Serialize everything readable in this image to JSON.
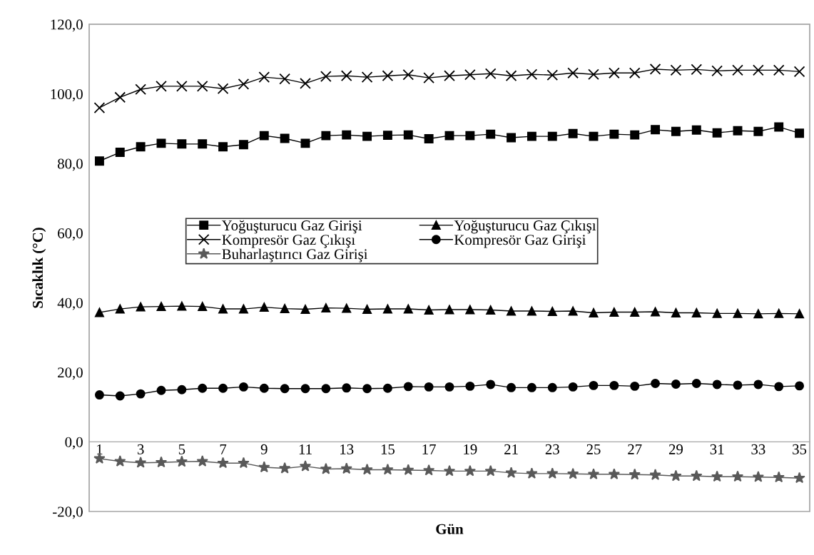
{
  "chart_data": {
    "type": "line",
    "xlabel": "Gün",
    "ylabel": "Sıcaklık (°C)",
    "categories": [
      "1",
      null,
      "3",
      null,
      "5",
      null,
      "7",
      null,
      "9",
      null,
      "11",
      null,
      "13",
      null,
      "15",
      null,
      "17",
      null,
      "19",
      null,
      "21",
      null,
      "23",
      null,
      "25",
      null,
      "27",
      null,
      "29",
      null,
      "31",
      null,
      "33",
      null,
      "35"
    ],
    "ylim": [
      -20,
      120
    ],
    "yticks": [
      {
        "value": -20,
        "label": "-20,0"
      },
      {
        "value": 0,
        "label": "0,0"
      },
      {
        "value": 20,
        "label": "20,0"
      },
      {
        "value": 40,
        "label": "40,0"
      },
      {
        "value": 60,
        "label": "60,0"
      },
      {
        "value": 80,
        "label": "80,0"
      },
      {
        "value": 100,
        "label": "100,0"
      },
      {
        "value": 120,
        "label": "120,0"
      }
    ],
    "grid": false,
    "legend": "center",
    "series": [
      {
        "name": "Yoğuşturucu Gaz Girişi",
        "color": "#000000",
        "marker": "square",
        "values": [
          80.7,
          83.2,
          84.8,
          85.8,
          85.6,
          85.6,
          84.8,
          85.4,
          88.0,
          87.2,
          85.8,
          88.0,
          88.2,
          87.8,
          88.1,
          88.2,
          87.1,
          88.0,
          88.0,
          88.4,
          87.4,
          87.8,
          87.8,
          88.6,
          87.8,
          88.4,
          88.2,
          89.7,
          89.2,
          89.6,
          88.8,
          89.4,
          89.2,
          90.5,
          88.7
        ]
      },
      {
        "name": "Yoğuşturucu Gaz Çıkışı",
        "color": "#000000",
        "marker": "triangle",
        "values": [
          37.2,
          38.2,
          38.8,
          38.9,
          39.0,
          38.9,
          38.2,
          38.2,
          38.7,
          38.3,
          38.1,
          38.5,
          38.4,
          38.1,
          38.2,
          38.2,
          37.9,
          38.0,
          38.0,
          37.9,
          37.6,
          37.6,
          37.5,
          37.6,
          37.1,
          37.3,
          37.3,
          37.4,
          37.1,
          37.1,
          36.9,
          36.9,
          36.8,
          36.9,
          36.8
        ]
      },
      {
        "name": "Kompresör Gaz Çıkışı",
        "color": "#000000",
        "marker": "cross",
        "values": [
          96.0,
          99.0,
          101.3,
          102.2,
          102.2,
          102.2,
          101.5,
          102.8,
          104.8,
          104.3,
          103.0,
          105.0,
          105.2,
          104.8,
          105.2,
          105.5,
          104.6,
          105.2,
          105.5,
          105.8,
          105.2,
          105.6,
          105.4,
          106.0,
          105.6,
          106.0,
          106.0,
          107.1,
          106.8,
          107.0,
          106.6,
          106.8,
          106.8,
          106.8,
          106.4
        ]
      },
      {
        "name": "Kompresör Gaz Girişi",
        "color": "#000000",
        "marker": "circle",
        "values": [
          13.5,
          13.2,
          13.8,
          14.8,
          15.0,
          15.4,
          15.4,
          15.8,
          15.4,
          15.3,
          15.3,
          15.3,
          15.5,
          15.3,
          15.4,
          15.9,
          15.8,
          15.8,
          16.0,
          16.5,
          15.6,
          15.6,
          15.6,
          15.8,
          16.2,
          16.2,
          16.0,
          16.8,
          16.6,
          16.8,
          16.5,
          16.3,
          16.5,
          15.9,
          16.1
        ]
      },
      {
        "name": "Buharlaştırıcı Gaz Girişi",
        "color": "#595959",
        "marker": "star",
        "values": [
          -4.8,
          -5.6,
          -6.0,
          -5.9,
          -5.7,
          -5.6,
          -6.1,
          -6.1,
          -7.3,
          -7.6,
          -7.0,
          -7.8,
          -7.7,
          -8.0,
          -8.0,
          -8.1,
          -8.2,
          -8.4,
          -8.4,
          -8.4,
          -8.9,
          -9.1,
          -9.1,
          -9.2,
          -9.3,
          -9.3,
          -9.4,
          -9.5,
          -9.8,
          -9.8,
          -10.0,
          -10.0,
          -10.1,
          -10.2,
          -10.4
        ]
      }
    ]
  }
}
